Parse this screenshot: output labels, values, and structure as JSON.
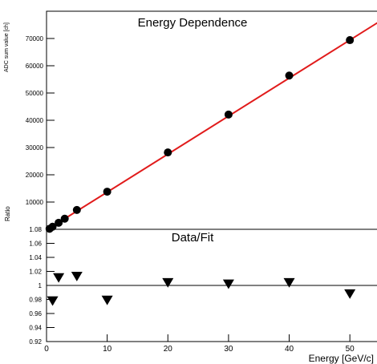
{
  "chart_data": [
    {
      "type": "scatter",
      "title": "Energy Dependence",
      "xlabel": "",
      "ylabel": "ADC sum value [ch]",
      "xlim": [
        0,
        55
      ],
      "ylim": [
        0,
        80000
      ],
      "grid": false,
      "xticks": [],
      "yticks": [
        10000,
        20000,
        30000,
        40000,
        50000,
        60000,
        70000
      ],
      "ytick_labels": [
        "10000",
        "20000",
        "30000",
        "40000",
        "50000",
        "60000",
        "70000"
      ],
      "series": [
        {
          "x": [
            0.5,
            1,
            2,
            3,
            5,
            10,
            20,
            30,
            40,
            50
          ],
          "y": [
            200,
            950,
            2400,
            3900,
            7100,
            13800,
            28200,
            42100,
            56400,
            69400
          ]
        }
      ],
      "fit_line": {
        "x": [
          0,
          55
        ],
        "y": [
          -300,
          76400
        ],
        "color": "#e11b1b"
      },
      "marker_color": "#000000"
    },
    {
      "type": "scatter",
      "title": "Data/Fit",
      "xlabel": "Energy [GeV/c]",
      "ylabel": "Ratio",
      "xlim": [
        0,
        55
      ],
      "ylim": [
        0.92,
        1.08
      ],
      "grid": false,
      "xticks": [
        0,
        10,
        20,
        30,
        40,
        50
      ],
      "xtick_labels": [
        "0",
        "10",
        "20",
        "30",
        "40",
        "50"
      ],
      "yticks": [
        0.92,
        0.94,
        0.96,
        0.98,
        1.0,
        1.02,
        1.04,
        1.06,
        1.08
      ],
      "ytick_labels": [
        "0.92",
        "0.94",
        "0.96",
        "0.98",
        "1",
        "1.02",
        "1.04",
        "1.06",
        "1.08"
      ],
      "series": [
        {
          "x": [
            1,
            2,
            5,
            10,
            20,
            30,
            40,
            50
          ],
          "y": [
            0.978,
            1.011,
            1.013,
            0.979,
            1.004,
            1.002,
            1.004,
            0.988
          ]
        }
      ],
      "reference_line": {
        "y": 1.0,
        "color": "#000000"
      },
      "marker_color": "#000000"
    }
  ]
}
